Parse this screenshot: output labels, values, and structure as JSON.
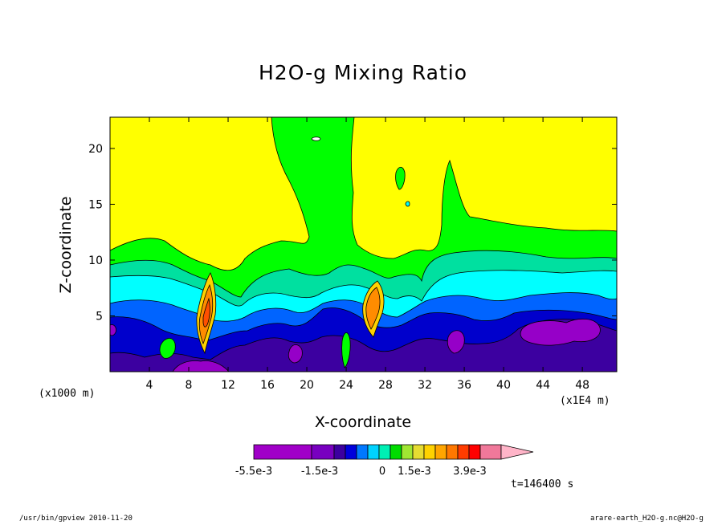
{
  "chart_data": {
    "type": "heatmap",
    "title": "H2O-g Mixing Ratio",
    "xlabel": "X-coordinate",
    "ylabel": "Z-coordinate",
    "x_unit_label": "(x1000 m)",
    "x_scale_label": "(x1E4 m)",
    "xlim": [
      0,
      51.5
    ],
    "ylim": [
      0,
      22.8
    ],
    "x_ticks": [
      4,
      8,
      12,
      16,
      20,
      24,
      28,
      32,
      36,
      40,
      44,
      48
    ],
    "y_ticks": [
      5,
      10,
      15,
      20
    ],
    "colorbar": {
      "colors": [
        "#a000c8",
        "#7800c0",
        "#3c00a0",
        "#0000dc",
        "#0078ff",
        "#00d2ff",
        "#00f0b4",
        "#00dc00",
        "#a0e632",
        "#e6dc32",
        "#ffd200",
        "#ffa500",
        "#ff7800",
        "#ff3c00",
        "#ff0000",
        "#f0789a",
        "#ffb4c8"
      ],
      "tick_labels": [
        "-5.5e-3",
        "-1.5e-3",
        "0",
        "1.5e-3",
        "3.9e-3"
      ]
    },
    "timestamp": "t=146400 s"
  },
  "footer": {
    "left": "/usr/bin/gpview  2010-11-20",
    "right": "arare-earth_H2O-g.nc@H2O-g"
  }
}
